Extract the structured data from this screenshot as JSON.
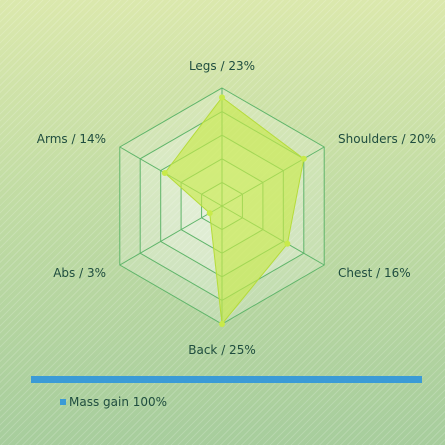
{
  "chart_data": {
    "type": "radar",
    "title": "",
    "axes": [
      {
        "name": "Legs",
        "percent": "23%",
        "value": 23
      },
      {
        "name": "Shoulders",
        "percent": "20%",
        "value": 20
      },
      {
        "name": "Chest",
        "percent": "16%",
        "value": 16
      },
      {
        "name": "Back",
        "percent": "25%",
        "value": 25
      },
      {
        "name": "Abs",
        "percent": "3%",
        "value": 3
      },
      {
        "name": "Arms",
        "percent": "14%",
        "value": 14
      }
    ],
    "rmax": 25,
    "rings": 5,
    "series": [
      {
        "name": "Mass gain",
        "share": "100%",
        "color": "#c8ea4a"
      }
    ],
    "legend": "bottom-left",
    "colors": {
      "fill": "#c8ea4a",
      "grid": "#5fb56a",
      "legend_bar": "#3b9bd6"
    }
  }
}
